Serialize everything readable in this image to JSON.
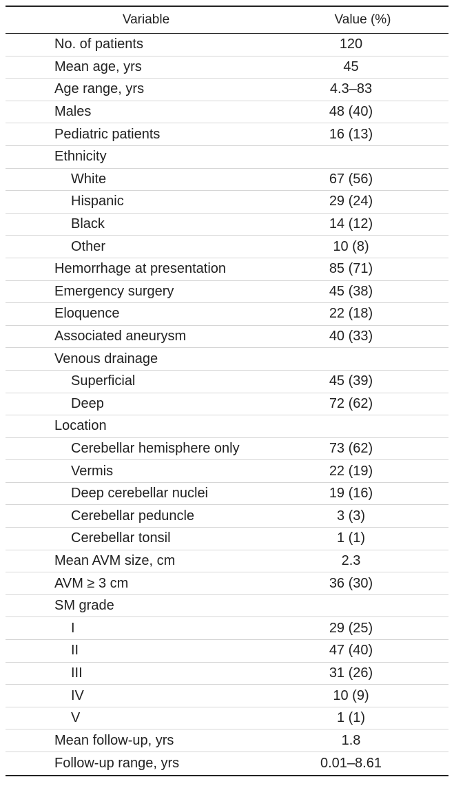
{
  "table": {
    "headers": {
      "variable": "Variable",
      "value": "Value (%)"
    },
    "rows": [
      {
        "label": "No. of patients",
        "value": "120",
        "indent": false
      },
      {
        "label": "Mean age, yrs",
        "value": "45",
        "indent": false
      },
      {
        "label": "Age range, yrs",
        "value": "4.3–83",
        "indent": false
      },
      {
        "label": "Males",
        "value": "48 (40)",
        "indent": false
      },
      {
        "label": "Pediatric patients",
        "value": "16 (13)",
        "indent": false
      },
      {
        "label": "Ethnicity",
        "value": "",
        "indent": false
      },
      {
        "label": "White",
        "value": "67 (56)",
        "indent": true
      },
      {
        "label": "Hispanic",
        "value": "29 (24)",
        "indent": true
      },
      {
        "label": "Black",
        "value": "14 (12)",
        "indent": true
      },
      {
        "label": "Other",
        "value": "10 (8)",
        "indent": true
      },
      {
        "label": "Hemorrhage at presentation",
        "value": "85 (71)",
        "indent": false
      },
      {
        "label": "Emergency surgery",
        "value": "45 (38)",
        "indent": false
      },
      {
        "label": "Eloquence",
        "value": "22 (18)",
        "indent": false
      },
      {
        "label": "Associated aneurysm",
        "value": "40 (33)",
        "indent": false
      },
      {
        "label": "Venous drainage",
        "value": "",
        "indent": false
      },
      {
        "label": "Superficial",
        "value": "45 (39)",
        "indent": true
      },
      {
        "label": "Deep",
        "value": "72 (62)",
        "indent": true
      },
      {
        "label": "Location",
        "value": "",
        "indent": false
      },
      {
        "label": "Cerebellar hemisphere only",
        "value": "73 (62)",
        "indent": true
      },
      {
        "label": "Vermis",
        "value": "22 (19)",
        "indent": true
      },
      {
        "label": "Deep cerebellar nuclei",
        "value": "19 (16)",
        "indent": true
      },
      {
        "label": "Cerebellar peduncle",
        "value": "3 (3)",
        "indent": true
      },
      {
        "label": "Cerebellar tonsil",
        "value": "1 (1)",
        "indent": true
      },
      {
        "label": "Mean AVM size, cm",
        "value": "2.3",
        "indent": false
      },
      {
        "label": "AVM ≥ 3 cm",
        "value": "36 (30)",
        "indent": false
      },
      {
        "label": "SM grade",
        "value": "",
        "indent": false
      },
      {
        "label": "I",
        "value": "29 (25)",
        "indent": true
      },
      {
        "label": "II",
        "value": "47 (40)",
        "indent": true
      },
      {
        "label": "III",
        "value": "31 (26)",
        "indent": true
      },
      {
        "label": "IV",
        "value": "10 (9)",
        "indent": true
      },
      {
        "label": "V",
        "value": "1 (1)",
        "indent": true
      },
      {
        "label": "Mean follow-up, yrs",
        "value": "1.8",
        "indent": false
      },
      {
        "label": "Follow-up range, yrs",
        "value": "0.01–8.61",
        "indent": false
      }
    ]
  }
}
